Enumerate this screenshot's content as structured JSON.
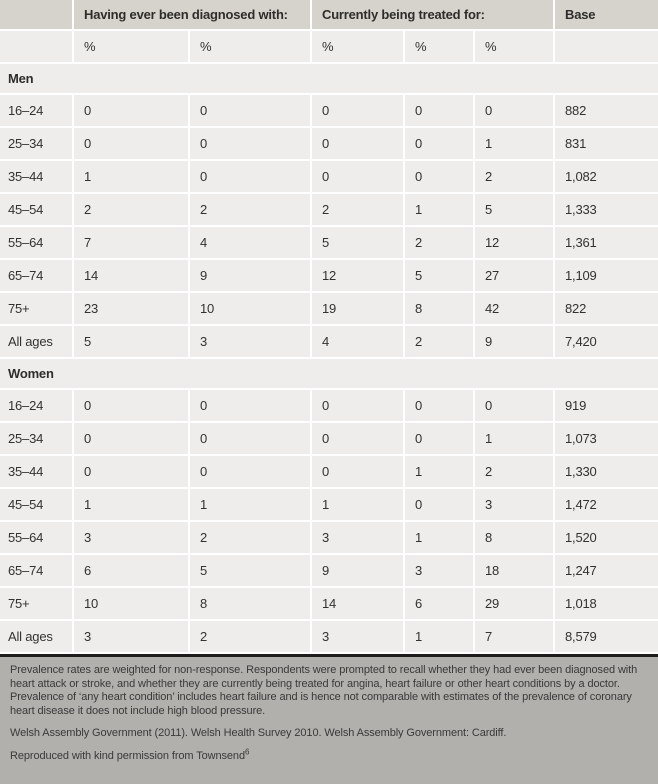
{
  "colors": {
    "header_bg": "#d6d2cc",
    "row_bg": "#eeedeb",
    "divider": "#ffffff",
    "footer_bg": "#b2b0ad",
    "footer_rule": "#1e1d1b",
    "text": "#333230"
  },
  "table": {
    "header": {
      "group1": "Having ever been diagnosed with:",
      "group2": "Currently being treated for:",
      "base": "Base",
      "percent_label": "%"
    },
    "sections": [
      {
        "label": "Men",
        "rows": [
          {
            "age": "16–24",
            "values": [
              "0",
              "0",
              "0",
              "0",
              "0"
            ],
            "base": "882"
          },
          {
            "age": "25–34",
            "values": [
              "0",
              "0",
              "0",
              "0",
              "1"
            ],
            "base": "831"
          },
          {
            "age": "35–44",
            "values": [
              "1",
              "0",
              "0",
              "0",
              "2"
            ],
            "base": "1,082"
          },
          {
            "age": "45–54",
            "values": [
              "2",
              "2",
              "2",
              "1",
              "5"
            ],
            "base": "1,333"
          },
          {
            "age": "55–64",
            "values": [
              "7",
              "4",
              "5",
              "2",
              "12"
            ],
            "base": "1,361"
          },
          {
            "age": "65–74",
            "values": [
              "14",
              "9",
              "12",
              "5",
              "27"
            ],
            "base": "1,109"
          },
          {
            "age": "75+",
            "values": [
              "23",
              "10",
              "19",
              "8",
              "42"
            ],
            "base": "822"
          },
          {
            "age": "All ages",
            "values": [
              "5",
              "3",
              "4",
              "2",
              "9"
            ],
            "base": "7,420"
          }
        ]
      },
      {
        "label": "Women",
        "rows": [
          {
            "age": "16–24",
            "values": [
              "0",
              "0",
              "0",
              "0",
              "0"
            ],
            "base": "919"
          },
          {
            "age": "25–34",
            "values": [
              "0",
              "0",
              "0",
              "0",
              "1"
            ],
            "base": "1,073"
          },
          {
            "age": "35–44",
            "values": [
              "0",
              "0",
              "0",
              "1",
              "2"
            ],
            "base": "1,330"
          },
          {
            "age": "45–54",
            "values": [
              "1",
              "1",
              "1",
              "0",
              "3"
            ],
            "base": "1,472"
          },
          {
            "age": "55–64",
            "values": [
              "3",
              "2",
              "3",
              "1",
              "8"
            ],
            "base": "1,520"
          },
          {
            "age": "65–74",
            "values": [
              "6",
              "5",
              "9",
              "3",
              "18"
            ],
            "base": "1,247"
          },
          {
            "age": "75+",
            "values": [
              "10",
              "8",
              "14",
              "6",
              "29"
            ],
            "base": "1,018"
          },
          {
            "age": "All ages",
            "values": [
              "3",
              "2",
              "3",
              "1",
              "7"
            ],
            "base": "8,579"
          }
        ]
      }
    ]
  },
  "footer": {
    "note": "Prevalence rates are weighted for non-response. Respondents were prompted to recall whether they had ever been diagnosed with heart attack or stroke, and whether they are currently being treated for angina, heart failure or other heart conditions by a doctor. Prevalence of ‘any heart condition’ includes heart failure and is hence not comparable with estimates of the prevalence of coronary heart disease it does not include high blood pressure.",
    "citation": "Welsh Assembly Government (2011). Welsh Health Survey 2010. Welsh Assembly Government: Cardiff.",
    "permission": "Reproduced with kind permission from Townsend",
    "permission_sup": "6"
  }
}
